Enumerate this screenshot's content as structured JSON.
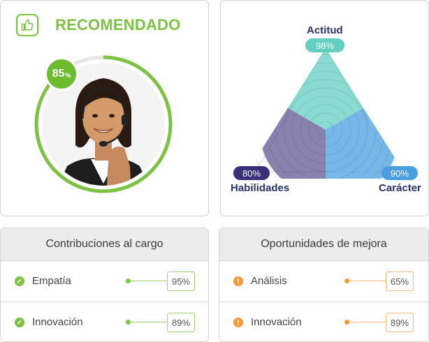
{
  "recommendation": {
    "title": "RECOMENDADO",
    "score": "85",
    "score_symbol": "%",
    "icons": {
      "badge": "thumbs-up-icon",
      "photo": "customer-service-agent-photo"
    },
    "colors": {
      "accent": "#7cc243",
      "ring": "#7cc243"
    },
    "score_fraction": 0.85
  },
  "radar": {
    "axes": [
      {
        "label": "Actitud",
        "value": "98%",
        "fraction": 0.98,
        "color": "#63cfc2"
      },
      {
        "label": "Carácter",
        "value": "90%",
        "fraction": 0.9,
        "color": "#4a9fe0"
      },
      {
        "label": "Habilidades",
        "value": "80%",
        "fraction": 0.8,
        "color": "#3a2f7a"
      }
    ]
  },
  "contributions": {
    "title": "Contribuciones al cargo",
    "rows": [
      {
        "label": "Empatía",
        "value": "95%",
        "icon": "check-circle-icon"
      },
      {
        "label": "Innovación",
        "value": "89%",
        "icon": "check-circle-icon"
      }
    ]
  },
  "opportunities": {
    "title": "Oportunidades de mejora",
    "rows": [
      {
        "label": "Análisis",
        "value": "65%",
        "icon": "exclamation-circle-icon"
      },
      {
        "label": "Innovación",
        "value": "89%",
        "icon": "exclamation-circle-icon"
      }
    ]
  }
}
